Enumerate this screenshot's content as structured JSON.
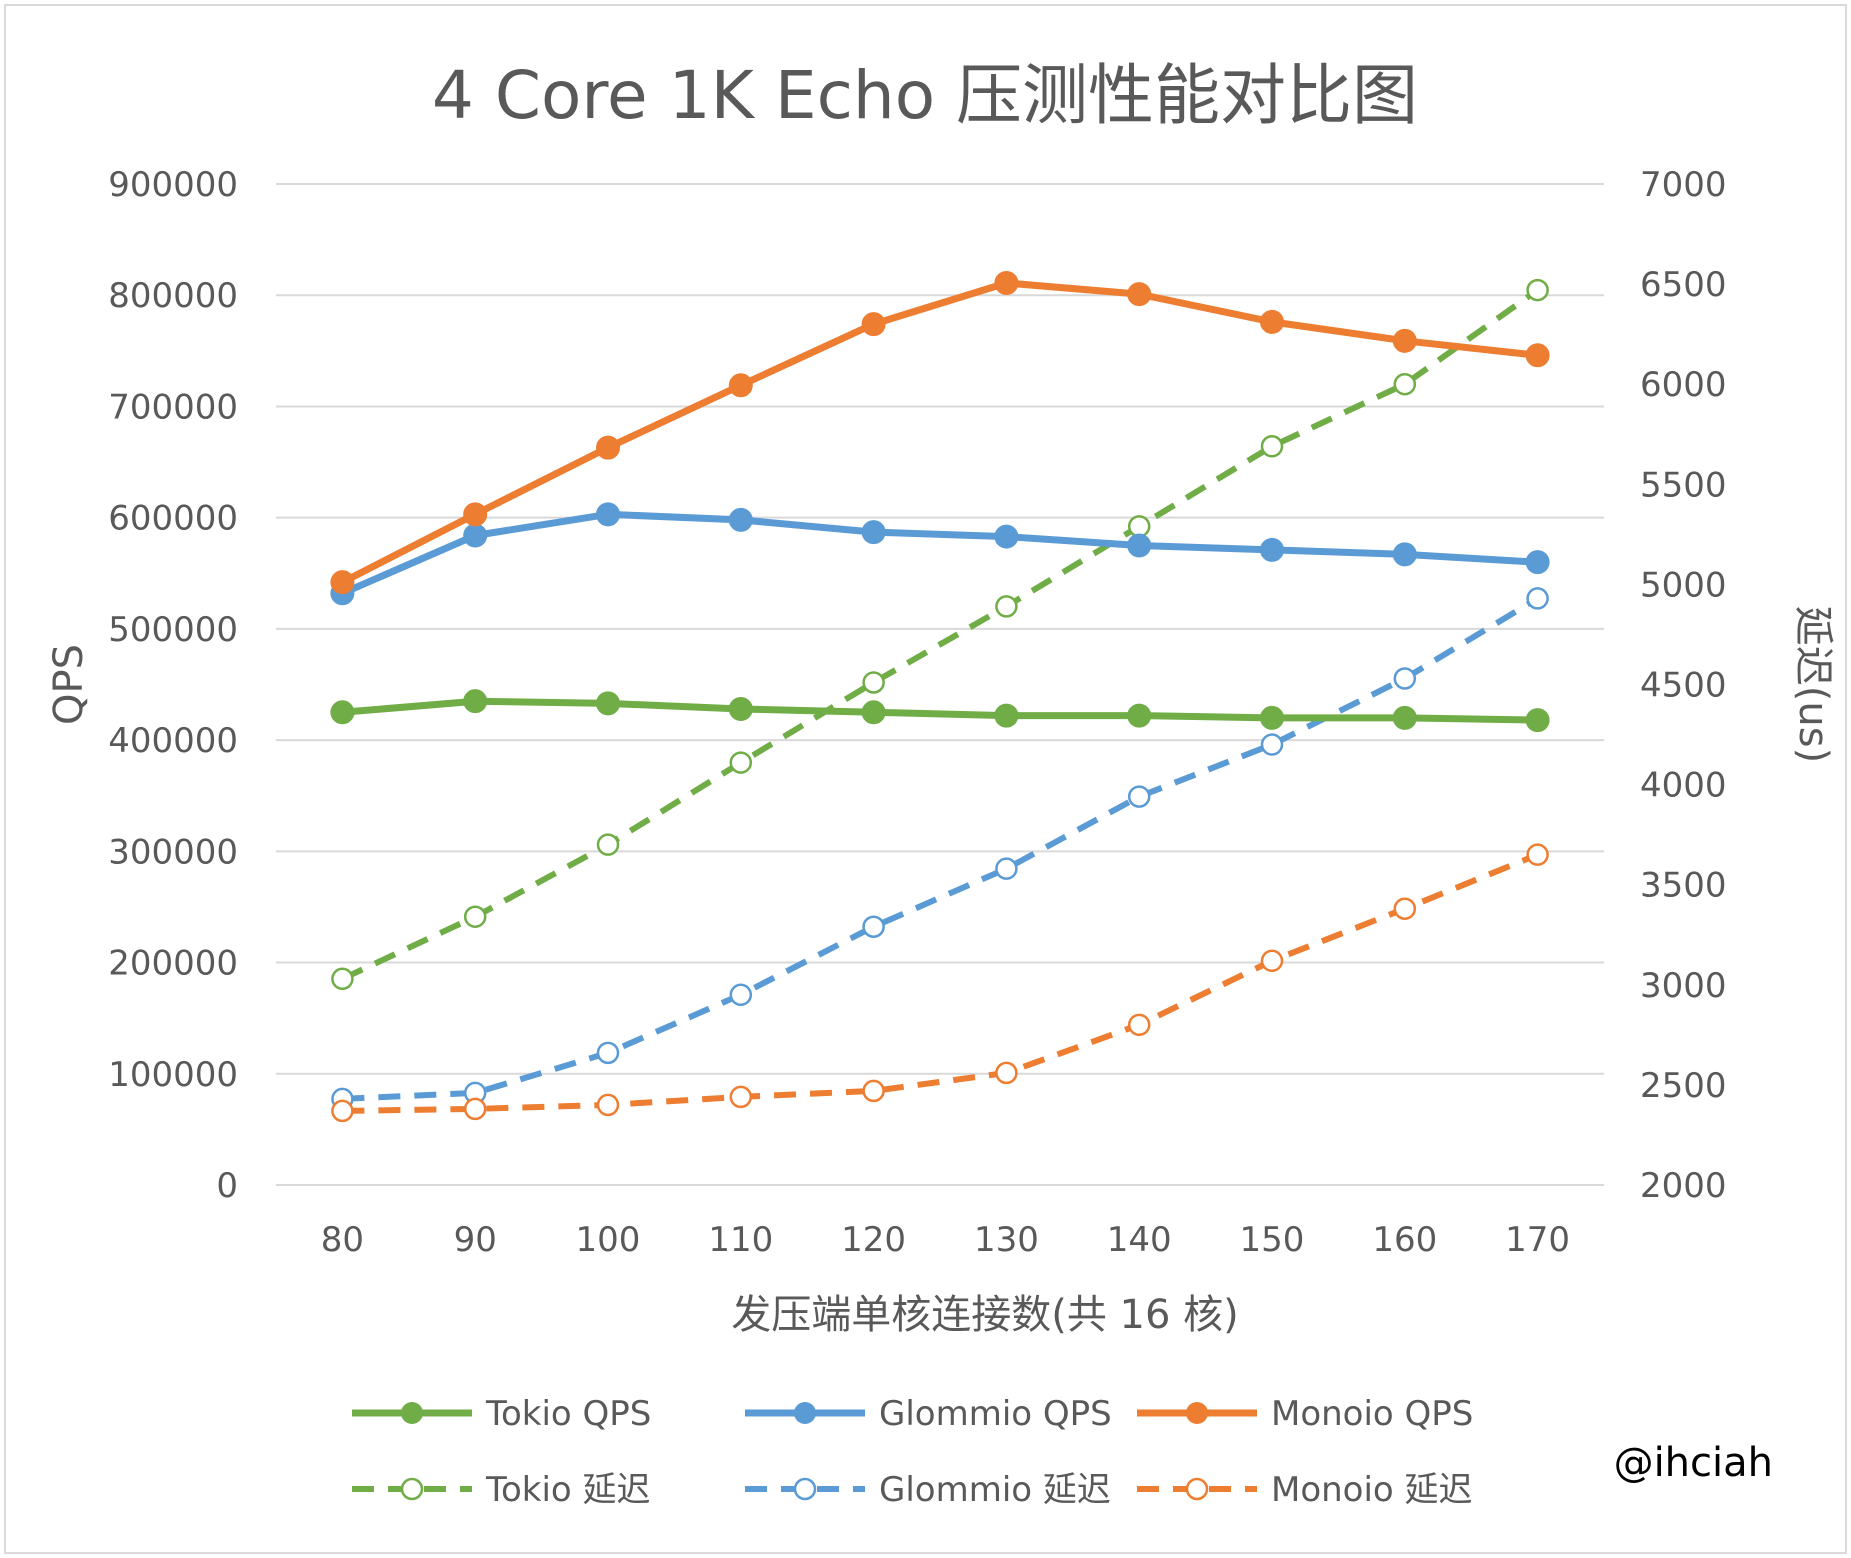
{
  "chart_data": {
    "type": "line",
    "title": "4 Core 1K Echo 压测性能对比图",
    "xlabel": "发压端单核连接数(共 16 核)",
    "ylabel_left": "QPS",
    "ylabel_right": "延迟(us)",
    "x": [
      80,
      90,
      100,
      110,
      120,
      130,
      140,
      150,
      160,
      170
    ],
    "y_left_ticks": [
      "0",
      "100000",
      "200000",
      "300000",
      "400000",
      "500000",
      "600000",
      "700000",
      "800000",
      "900000"
    ],
    "y_right_ticks": [
      "2000",
      "2500",
      "3000",
      "3500",
      "4000",
      "4500",
      "5000",
      "5500",
      "6000",
      "6500",
      "7000"
    ],
    "ylim_left": [
      0,
      900000
    ],
    "ylim_right": [
      2000,
      7000
    ],
    "grid": true,
    "legend_position": "bottom",
    "series": [
      {
        "name": "Tokio QPS",
        "axis": "left",
        "style": "solid",
        "color": "#70ad47",
        "values": [
          425000,
          435000,
          433000,
          428000,
          425000,
          422000,
          422000,
          420000,
          420000,
          418000
        ]
      },
      {
        "name": "Glommio QPS",
        "axis": "left",
        "style": "solid",
        "color": "#5b9bd5",
        "values": [
          532000,
          584000,
          603000,
          598000,
          587000,
          583000,
          575000,
          571000,
          567000,
          560000
        ]
      },
      {
        "name": "Monoio QPS",
        "axis": "left",
        "style": "solid",
        "color": "#ed7d31",
        "values": [
          542000,
          603000,
          663000,
          719000,
          774000,
          811000,
          801000,
          776000,
          759000,
          746000
        ]
      },
      {
        "name": "Tokio 延迟",
        "axis": "right",
        "style": "dashed",
        "color": "#70ad47",
        "values": [
          3030,
          3340,
          3700,
          4110,
          4510,
          4890,
          5290,
          5690,
          6000,
          6470
        ]
      },
      {
        "name": "Glommio 延迟",
        "axis": "right",
        "style": "dashed",
        "color": "#5b9bd5",
        "values": [
          2430,
          2460,
          2660,
          2950,
          3290,
          3580,
          3940,
          4200,
          4530,
          4930
        ]
      },
      {
        "name": "Monoio 延迟",
        "axis": "right",
        "style": "dashed",
        "color": "#ed7d31",
        "values": [
          2370,
          2380,
          2400,
          2440,
          2470,
          2560,
          2800,
          3120,
          3380,
          3650
        ]
      }
    ],
    "annotation": "@ihciah"
  }
}
